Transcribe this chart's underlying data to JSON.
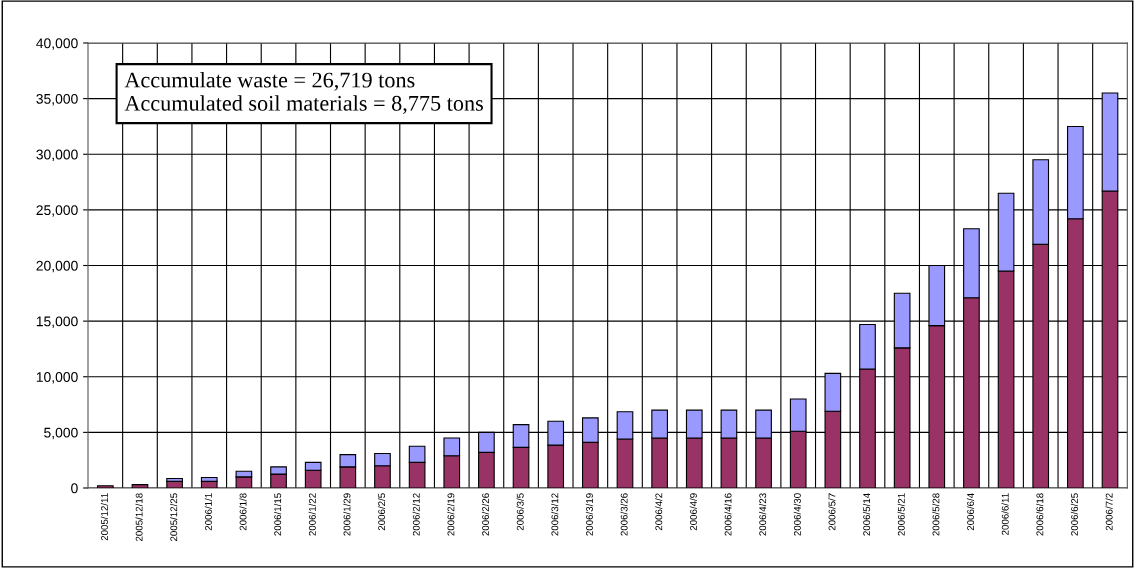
{
  "chart_data": {
    "type": "bar",
    "stacked": true,
    "categories": [
      "2005/12/11",
      "2005/12/18",
      "2005/12/25",
      "2006/1/1",
      "2006/1/8",
      "2006/1/15",
      "2006/1/22",
      "2006/1/29",
      "2006/2/5",
      "2006/2/12",
      "2006/2/19",
      "2006/2/26",
      "2006/3/5",
      "2006/3/12",
      "2006/3/19",
      "2006/3/26",
      "2006/4/2",
      "2006/4/9",
      "2006/4/16",
      "2006/4/23",
      "2006/4/30",
      "2006/5/7",
      "2006/5/14",
      "2006/5/21",
      "2006/5/28",
      "2006/6/4",
      "2006/6/11",
      "2006/6/18",
      "2006/6/25",
      "2006/7/2"
    ],
    "series": [
      {
        "color": "#993366",
        "values": [
          200,
          300,
          600,
          600,
          1000,
          1250,
          1600,
          1900,
          2000,
          2300,
          2900,
          3200,
          3650,
          3850,
          4100,
          4400,
          4500,
          4500,
          4500,
          4500,
          5100,
          6900,
          10700,
          12600,
          14600,
          17100,
          19500,
          21900,
          24200,
          26700
        ]
      },
      {
        "color": "#9999ff",
        "values": [
          null,
          null,
          250,
          350,
          500,
          650,
          700,
          1100,
          1100,
          1450,
          1600,
          1800,
          2050,
          2150,
          2200,
          2450,
          2500,
          2500,
          2500,
          2500,
          2900,
          3400,
          4000,
          4900,
          5400,
          6200,
          7000,
          7600,
          8300,
          8800
        ]
      }
    ],
    "ylim": [
      0,
      40000
    ],
    "yticks": [
      {
        "value": 0,
        "label": "0"
      },
      {
        "value": 5000,
        "label": "5,000"
      },
      {
        "value": 10000,
        "label": "10,000"
      },
      {
        "value": 15000,
        "label": "15,000"
      },
      {
        "value": 20000,
        "label": "20,000"
      },
      {
        "value": 25000,
        "label": "25,000"
      },
      {
        "value": 30000,
        "label": "30,000"
      },
      {
        "value": 35000,
        "label": "35,000"
      },
      {
        "value": 40000,
        "label": "40,000"
      }
    ],
    "grid": true,
    "annotations": [
      "Accumulate waste = 26,719 tons",
      "Accumulated soil materials = 8,775 tons"
    ]
  }
}
